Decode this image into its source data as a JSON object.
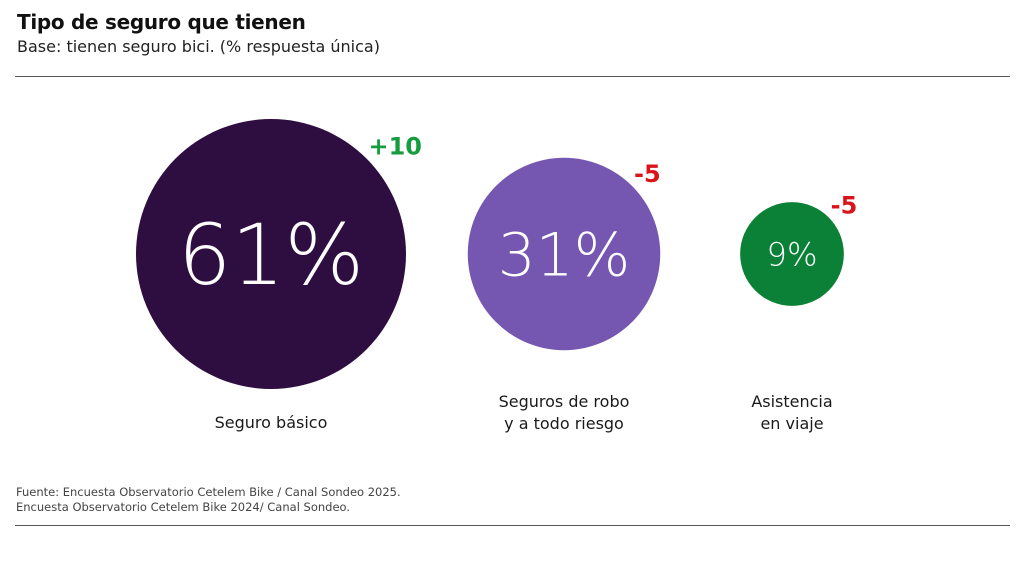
{
  "header": {
    "title": "Tipo de seguro que tienen",
    "subtitle": "Base: tienen seguro bici. (% respuesta única)"
  },
  "chart_data": {
    "type": "bubble",
    "title": "Tipo de seguro que tienen",
    "subtitle": "Base: tienen seguro bici. (% respuesta única)",
    "categories": [
      "Seguro básico",
      "Seguros de robo\ny a todo riesgo",
      "Asistencia\nen viaje"
    ],
    "values": [
      61,
      31,
      9
    ],
    "value_labels": [
      "61%",
      "31%",
      "9%"
    ],
    "changes": [
      10,
      -5,
      -5
    ],
    "change_labels": [
      "+10",
      "-5",
      "-5"
    ],
    "unit": "%",
    "colors": [
      "#2e0d40",
      "#7556b0",
      "#0b8137"
    ],
    "change_colors": {
      "positive": "#149c3e",
      "negative": "#d9151b"
    }
  },
  "footer": {
    "source_line1": "Fuente: Encuesta Observatorio Cetelem Bike / Canal Sondeo 2025.",
    "source_line2": "Encuesta Observatorio Cetelem Bike 2024/ Canal Sondeo."
  }
}
